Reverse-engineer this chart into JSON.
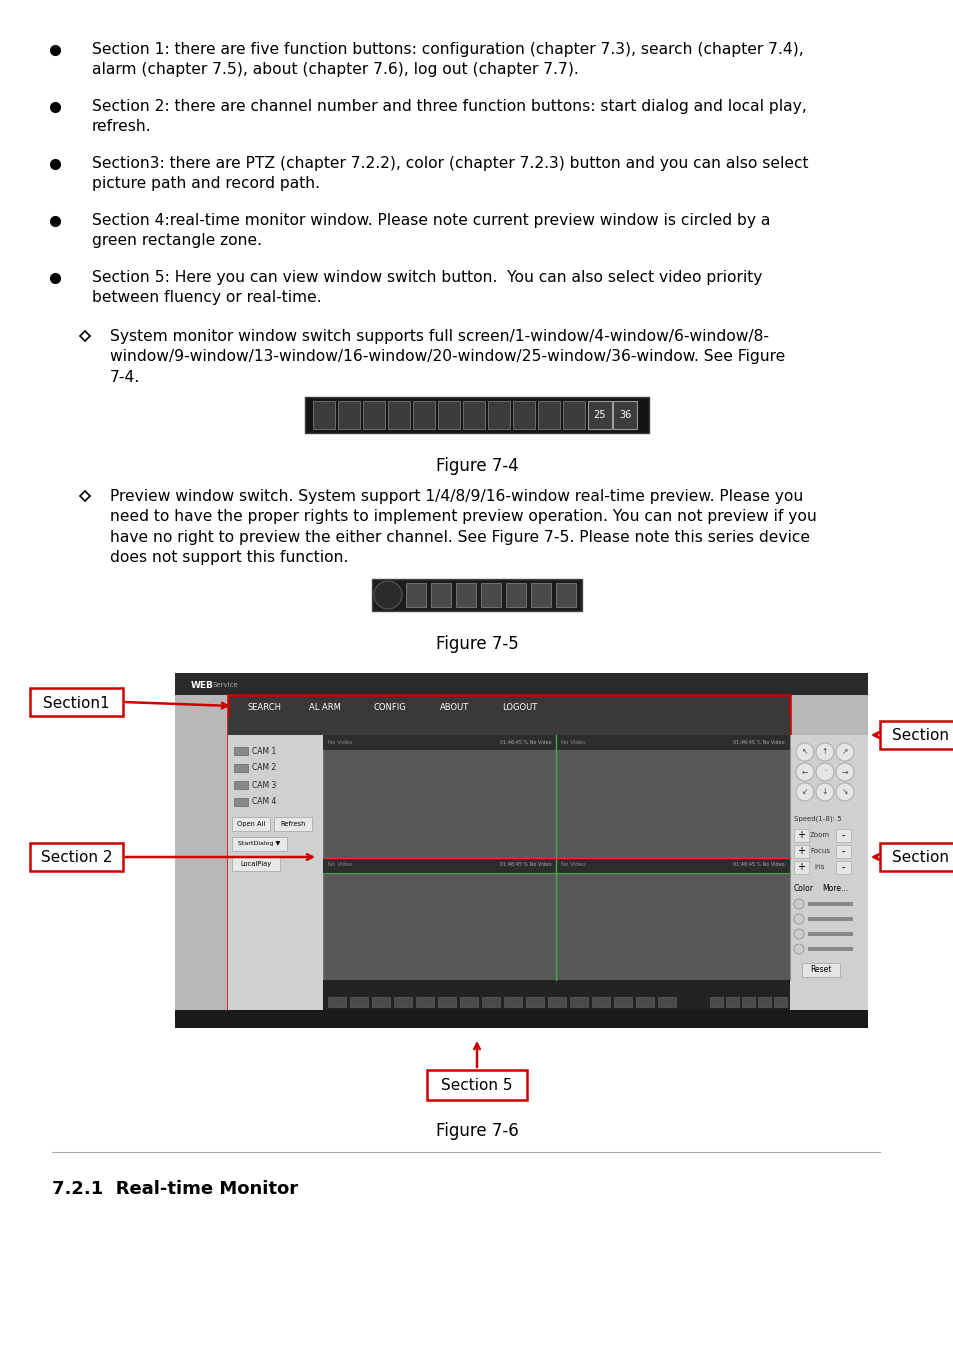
{
  "background_color": "#ffffff",
  "bullet_points": [
    "Section 1: there are five function buttons: configuration (chapter 7.3), search (chapter 7.4),\nalarm (chapter 7.5), about (chapter 7.6), log out (chapter 7.7).",
    "Section 2: there are channel number and three function buttons: start dialog and local play,\nrefresh.",
    "Section3: there are PTZ (chapter 7.2.2), color (chapter 7.2.3) button and you can also select\npicture path and record path.",
    "Section 4:real-time monitor window. Please note current preview window is circled by a\ngreen rectangle zone.",
    "Section 5: Here you can view window switch button.  You can also select video priority\nbetween fluency or real-time."
  ],
  "sub_bullet1": "System monitor window switch supports full screen/1-window/4-window/6-window/8-\nwindow/9-window/13-window/16-window/20-window/25-window/36-window. See Figure\n7-4.",
  "sub_bullet2": "Preview window switch. System support 1/4/8/9/16-window real-time preview. Please you\nneed to have the proper rights to implement preview operation. You can not preview if you\nhave no right to preview the either channel. See Figure 7-5. Please note this series device\ndoes not support this function.",
  "figure7_4_label": "Figure 7-4",
  "figure7_5_label": "Figure 7-5",
  "figure7_6_label": "Figure 7-6",
  "section721_title": "7.2.1  Real-time Monitor",
  "text_color": "#000000",
  "red_color": "#cc0000"
}
